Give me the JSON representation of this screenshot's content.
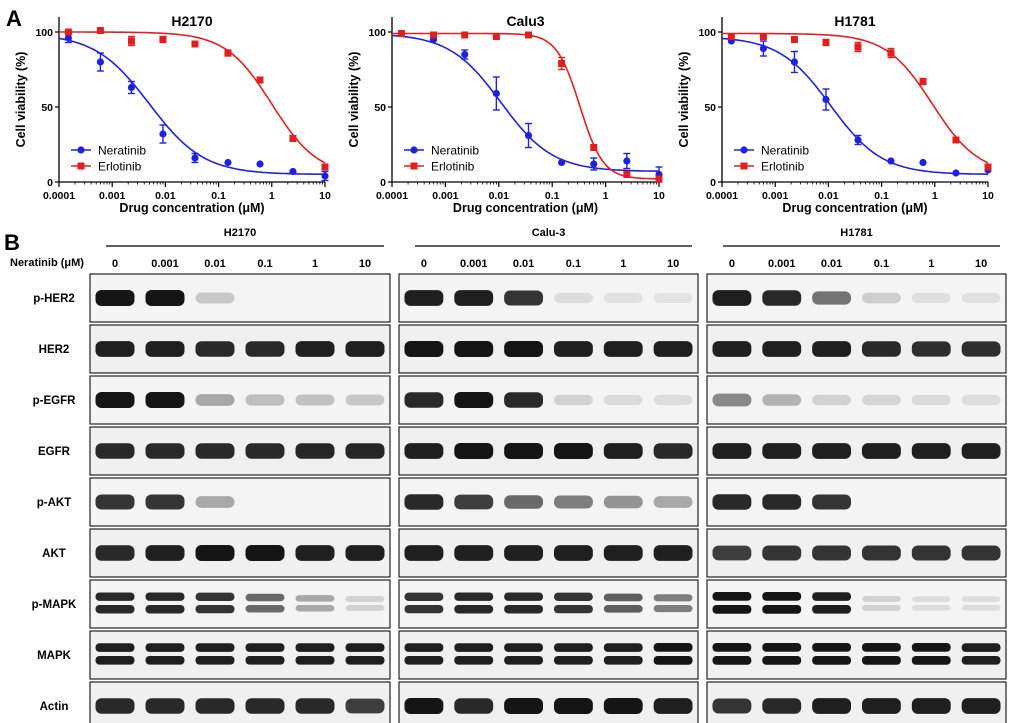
{
  "panel_labels": [
    "A",
    "B"
  ],
  "chart_data": [
    {
      "type": "scatter",
      "title": "H2170",
      "xlabel": "Drug concentration (μM)",
      "ylabel": "Cell viability (%)",
      "x_scale": "log",
      "xlim": [
        0.0001,
        10
      ],
      "ylim": [
        0,
        110
      ],
      "x_ticks": [
        0.0001,
        0.001,
        0.01,
        0.1,
        1,
        10
      ],
      "x_tick_labels": [
        "0.0001",
        "0.001",
        "0.01",
        "0.1",
        "1",
        "10"
      ],
      "y_ticks": [
        0,
        50,
        100
      ],
      "y_tick_labels": [
        "0",
        "50",
        "100"
      ],
      "legend_position": "bottom-left",
      "series": [
        {
          "name": "Neratinib",
          "color": "#2020e0",
          "marker": "circle",
          "x": [
            0.00015,
            0.0006,
            0.0023,
            0.009,
            0.036,
            0.15,
            0.6,
            2.5,
            10
          ],
          "y": [
            96,
            80,
            63,
            32,
            16,
            13,
            12,
            7,
            4
          ],
          "err": [
            3,
            6,
            4,
            6,
            3,
            0,
            0,
            0,
            3
          ],
          "fit_top": 99,
          "fit_bottom": 5,
          "fit_ec50": 0.005,
          "fit_hill": 0.85
        },
        {
          "name": "Erlotinib",
          "color": "#e02020",
          "marker": "square",
          "x": [
            0.00015,
            0.0006,
            0.0023,
            0.009,
            0.036,
            0.15,
            0.6,
            2.5,
            10
          ],
          "y": [
            100,
            101,
            94,
            95,
            92,
            86,
            68,
            29,
            10
          ],
          "err": [
            0,
            0,
            3,
            2,
            0,
            2,
            0,
            0,
            0
          ],
          "fit_top": 100,
          "fit_bottom": 4,
          "fit_ec50": 1.0,
          "fit_hill": 1.0
        }
      ]
    },
    {
      "type": "scatter",
      "title": "Calu3",
      "xlabel": "Drug concentration (μM)",
      "ylabel": "Cell viability (%)",
      "x_scale": "log",
      "xlim": [
        0.0001,
        10
      ],
      "ylim": [
        0,
        110
      ],
      "x_ticks": [
        0.0001,
        0.001,
        0.01,
        0.1,
        1,
        10
      ],
      "x_tick_labels": [
        "0.0001",
        "0.001",
        "0.01",
        "0.1",
        "1",
        "10"
      ],
      "y_ticks": [
        0,
        50,
        100
      ],
      "y_tick_labels": [
        "0",
        "50",
        "100"
      ],
      "legend_position": "bottom-left",
      "series": [
        {
          "name": "Neratinib",
          "color": "#2020e0",
          "marker": "circle",
          "x": [
            0.00015,
            0.0006,
            0.0023,
            0.009,
            0.036,
            0.15,
            0.6,
            2.5,
            10
          ],
          "y": [
            99,
            95,
            85,
            59,
            31,
            13,
            12,
            14,
            5
          ],
          "err": [
            0,
            0,
            3,
            11,
            8,
            0,
            4,
            5,
            5
          ],
          "fit_top": 99,
          "fit_bottom": 7,
          "fit_ec50": 0.011,
          "fit_hill": 0.9
        },
        {
          "name": "Erlotinib",
          "color": "#e02020",
          "marker": "square",
          "x": [
            0.00015,
            0.0006,
            0.0023,
            0.009,
            0.036,
            0.15,
            0.6,
            2.5,
            10
          ],
          "y": [
            99,
            98,
            98,
            97,
            98,
            79,
            23,
            5,
            2
          ],
          "err": [
            0,
            0,
            0,
            0,
            0,
            4,
            0,
            0,
            0
          ],
          "fit_top": 99,
          "fit_bottom": 2,
          "fit_ec50": 0.33,
          "fit_hill": 2.0
        }
      ]
    },
    {
      "type": "scatter",
      "title": "H1781",
      "xlabel": "Drug concentration (μM)",
      "ylabel": "Cell viability (%)",
      "x_scale": "log",
      "xlim": [
        0.0001,
        10
      ],
      "ylim": [
        0,
        110
      ],
      "x_ticks": [
        0.0001,
        0.001,
        0.01,
        0.1,
        1,
        10
      ],
      "x_tick_labels": [
        "0.0001",
        "0.001",
        "0.01",
        "0.1",
        "1",
        "10"
      ],
      "y_ticks": [
        0,
        50,
        100
      ],
      "y_tick_labels": [
        "0",
        "50",
        "100"
      ],
      "legend_position": "bottom-left",
      "series": [
        {
          "name": "Neratinib",
          "color": "#2020e0",
          "marker": "circle",
          "x": [
            0.00015,
            0.0006,
            0.0023,
            0.009,
            0.036,
            0.15,
            0.6,
            2.5,
            10
          ],
          "y": [
            94,
            89,
            80,
            55,
            28,
            14,
            13,
            6,
            8
          ],
          "err": [
            0,
            5,
            7,
            7,
            3,
            0,
            0,
            0,
            0
          ],
          "fit_top": 97,
          "fit_bottom": 5,
          "fit_ec50": 0.011,
          "fit_hill": 0.9
        },
        {
          "name": "Erlotinib",
          "color": "#e02020",
          "marker": "square",
          "x": [
            0.00015,
            0.0006,
            0.0023,
            0.009,
            0.036,
            0.15,
            0.6,
            2.5,
            10
          ],
          "y": [
            97,
            97,
            95,
            93,
            90,
            86,
            67,
            28,
            10
          ],
          "err": [
            0,
            0,
            0,
            2,
            3,
            3,
            2,
            0,
            0
          ],
          "fit_top": 99,
          "fit_bottom": 5,
          "fit_ec50": 0.9,
          "fit_hill": 1.0
        }
      ]
    },
    {
      "type": "table",
      "title": "",
      "header_label": "Neratinib (μM)",
      "cell_lines": [
        "H2170",
        "Calu-3",
        "H1781"
      ],
      "doses": [
        "0",
        "0.001",
        "0.01",
        "0.1",
        "1",
        "10"
      ],
      "row_labels": [
        "p-HER2",
        "HER2",
        "p-EGFR",
        "EGFR",
        "p-AKT",
        "AKT",
        "p-MAPK",
        "MAPK",
        "Actin"
      ],
      "band_intensity": [
        [
          [
            1.0,
            1.0,
            0.15,
            0,
            0,
            0
          ],
          [
            0.95,
            0.95,
            0.85,
            0.05,
            0.03,
            0.02
          ],
          [
            0.95,
            0.9,
            0.55,
            0.12,
            0.04,
            0.03
          ]
        ],
        [
          [
            0.95,
            0.95,
            0.9,
            0.9,
            0.95,
            0.95
          ],
          [
            1.0,
            1.0,
            1.0,
            0.95,
            0.95,
            0.95
          ],
          [
            0.95,
            0.95,
            0.95,
            0.9,
            0.88,
            0.88
          ]
        ],
        [
          [
            1.0,
            1.0,
            0.3,
            0.2,
            0.18,
            0.15
          ],
          [
            0.9,
            1.0,
            0.9,
            0.1,
            0.06,
            0.05
          ],
          [
            0.45,
            0.25,
            0.1,
            0.08,
            0.06,
            0.05
          ]
        ],
        [
          [
            0.9,
            0.9,
            0.9,
            0.9,
            0.92,
            0.92
          ],
          [
            0.95,
            1.0,
            1.0,
            1.0,
            0.95,
            0.9
          ],
          [
            0.95,
            0.95,
            0.95,
            0.95,
            0.95,
            0.95
          ]
        ],
        [
          [
            0.85,
            0.85,
            0.3,
            0,
            0,
            0
          ],
          [
            0.9,
            0.8,
            0.6,
            0.5,
            0.4,
            0.3
          ],
          [
            0.9,
            0.9,
            0.85,
            0,
            0,
            0
          ]
        ],
        [
          [
            0.9,
            0.95,
            1.0,
            1.0,
            0.95,
            0.95
          ],
          [
            0.95,
            0.95,
            0.95,
            0.95,
            0.95,
            0.95
          ],
          [
            0.8,
            0.85,
            0.85,
            0.85,
            0.85,
            0.85
          ]
        ],
        [
          [
            0.9,
            0.9,
            0.85,
            0.6,
            0.3,
            0.1
          ],
          [
            0.85,
            0.9,
            0.9,
            0.85,
            0.65,
            0.5
          ],
          [
            1.0,
            1.0,
            0.95,
            0.1,
            0.05,
            0.05
          ]
        ],
        [
          [
            0.95,
            0.95,
            0.95,
            0.95,
            0.95,
            0.95
          ],
          [
            0.95,
            0.95,
            0.95,
            0.95,
            0.95,
            1.0
          ],
          [
            1.0,
            1.0,
            1.0,
            1.0,
            1.0,
            0.95
          ]
        ],
        [
          [
            0.9,
            0.9,
            0.9,
            0.9,
            0.9,
            0.8
          ],
          [
            1.0,
            0.9,
            1.0,
            1.0,
            1.0,
            0.95
          ],
          [
            0.85,
            0.9,
            0.95,
            0.95,
            0.95,
            0.95
          ]
        ]
      ]
    }
  ]
}
